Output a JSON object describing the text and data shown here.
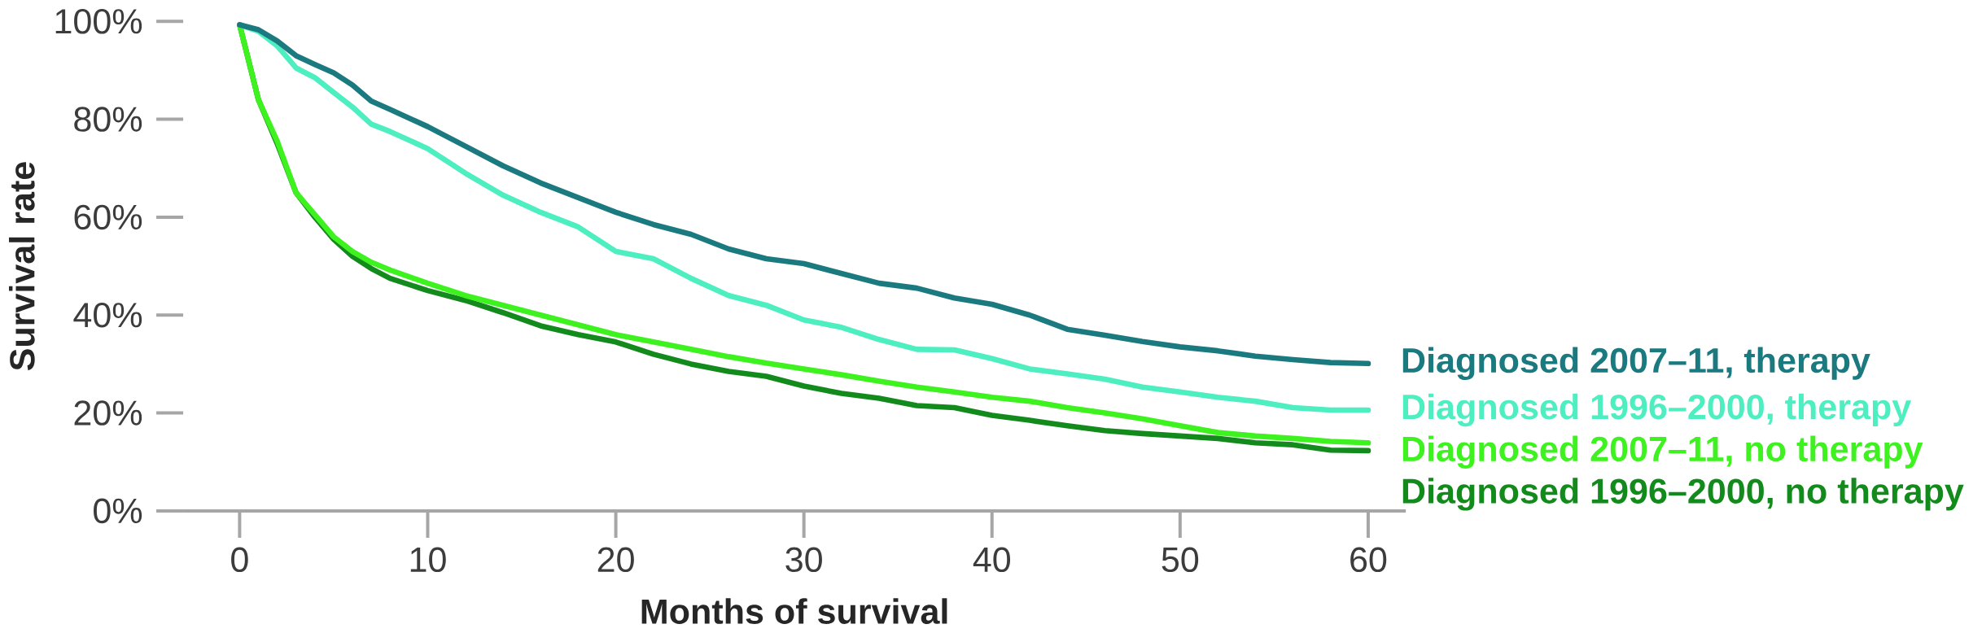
{
  "chart_data": {
    "type": "line",
    "xlabel": "Months of survival",
    "ylabel": "Survival rate",
    "x": [
      0,
      1,
      2,
      3,
      4,
      5,
      6,
      7,
      8,
      10,
      12,
      14,
      16,
      18,
      20,
      22,
      24,
      26,
      28,
      30,
      32,
      34,
      36,
      38,
      40,
      42,
      44,
      46,
      48,
      50,
      52,
      54,
      56,
      58,
      60
    ],
    "series": [
      {
        "name": "Diagnosed 2007–11, therapy",
        "color": "#1a7a80",
        "values": [
          99.3,
          98.3,
          96,
          93,
          91.2,
          89.5,
          87,
          83.7,
          82,
          78.5,
          74.5,
          70.5,
          67,
          64,
          61,
          58.5,
          56.5,
          53.5,
          51.5,
          50.5,
          48.5,
          46.5,
          45.5,
          43.5,
          42.2,
          40,
          37.1,
          35.9,
          34.6,
          33.5,
          32.7,
          31.6,
          30.9,
          30.3,
          30.1
        ]
      },
      {
        "name": "Diagnosed 1996–2000, therapy",
        "color": "#4deec0",
        "values": [
          99.3,
          98,
          95,
          90.5,
          88.5,
          85.5,
          82.5,
          79,
          77.5,
          74,
          69,
          64.5,
          61,
          58,
          53,
          51.5,
          47.5,
          44,
          42,
          39,
          37.5,
          35,
          33,
          32.9,
          31.1,
          29,
          28,
          26.9,
          25.3,
          24.3,
          23.2,
          22.4,
          21.1,
          20.6,
          20.6
        ]
      },
      {
        "name": "Diagnosed 2007–11, no therapy",
        "color": "#3ef21f",
        "values": [
          99.3,
          84,
          75.5,
          65,
          60.5,
          56,
          53,
          50.8,
          49.2,
          46.5,
          44,
          42,
          40,
          38,
          36,
          34.5,
          33,
          31.5,
          30.2,
          29,
          27.8,
          26.5,
          25.3,
          24.3,
          23.2,
          22.4,
          21.1,
          20,
          18.8,
          17.4,
          16,
          15.3,
          14.8,
          14.2,
          13.9
        ]
      },
      {
        "name": "Diagnosed 1996–2000, no therapy",
        "color": "#138a1c",
        "values": [
          99.3,
          84,
          75,
          65,
          60,
          55.5,
          52,
          49.5,
          47.5,
          45,
          43,
          40.5,
          37.8,
          36,
          34.5,
          32,
          30,
          28.5,
          27.5,
          25.5,
          24,
          23,
          21.5,
          21.1,
          19.5,
          18.5,
          17.4,
          16.4,
          15.8,
          15.3,
          14.8,
          13.9,
          13.5,
          12.4,
          12.3
        ]
      }
    ],
    "xlim": [
      -3,
      62
    ],
    "ylim": [
      0,
      100
    ],
    "xticks": [
      0,
      10,
      20,
      30,
      40,
      50,
      60
    ],
    "yticks": [
      {
        "value": 0,
        "label": "0%"
      },
      {
        "value": 20,
        "label": "20%"
      },
      {
        "value": 40,
        "label": "40%"
      },
      {
        "value": 60,
        "label": "60%"
      },
      {
        "value": 80,
        "label": "80%"
      },
      {
        "value": 100,
        "label": "100%"
      }
    ],
    "marker": "none",
    "line_style": "solid"
  }
}
